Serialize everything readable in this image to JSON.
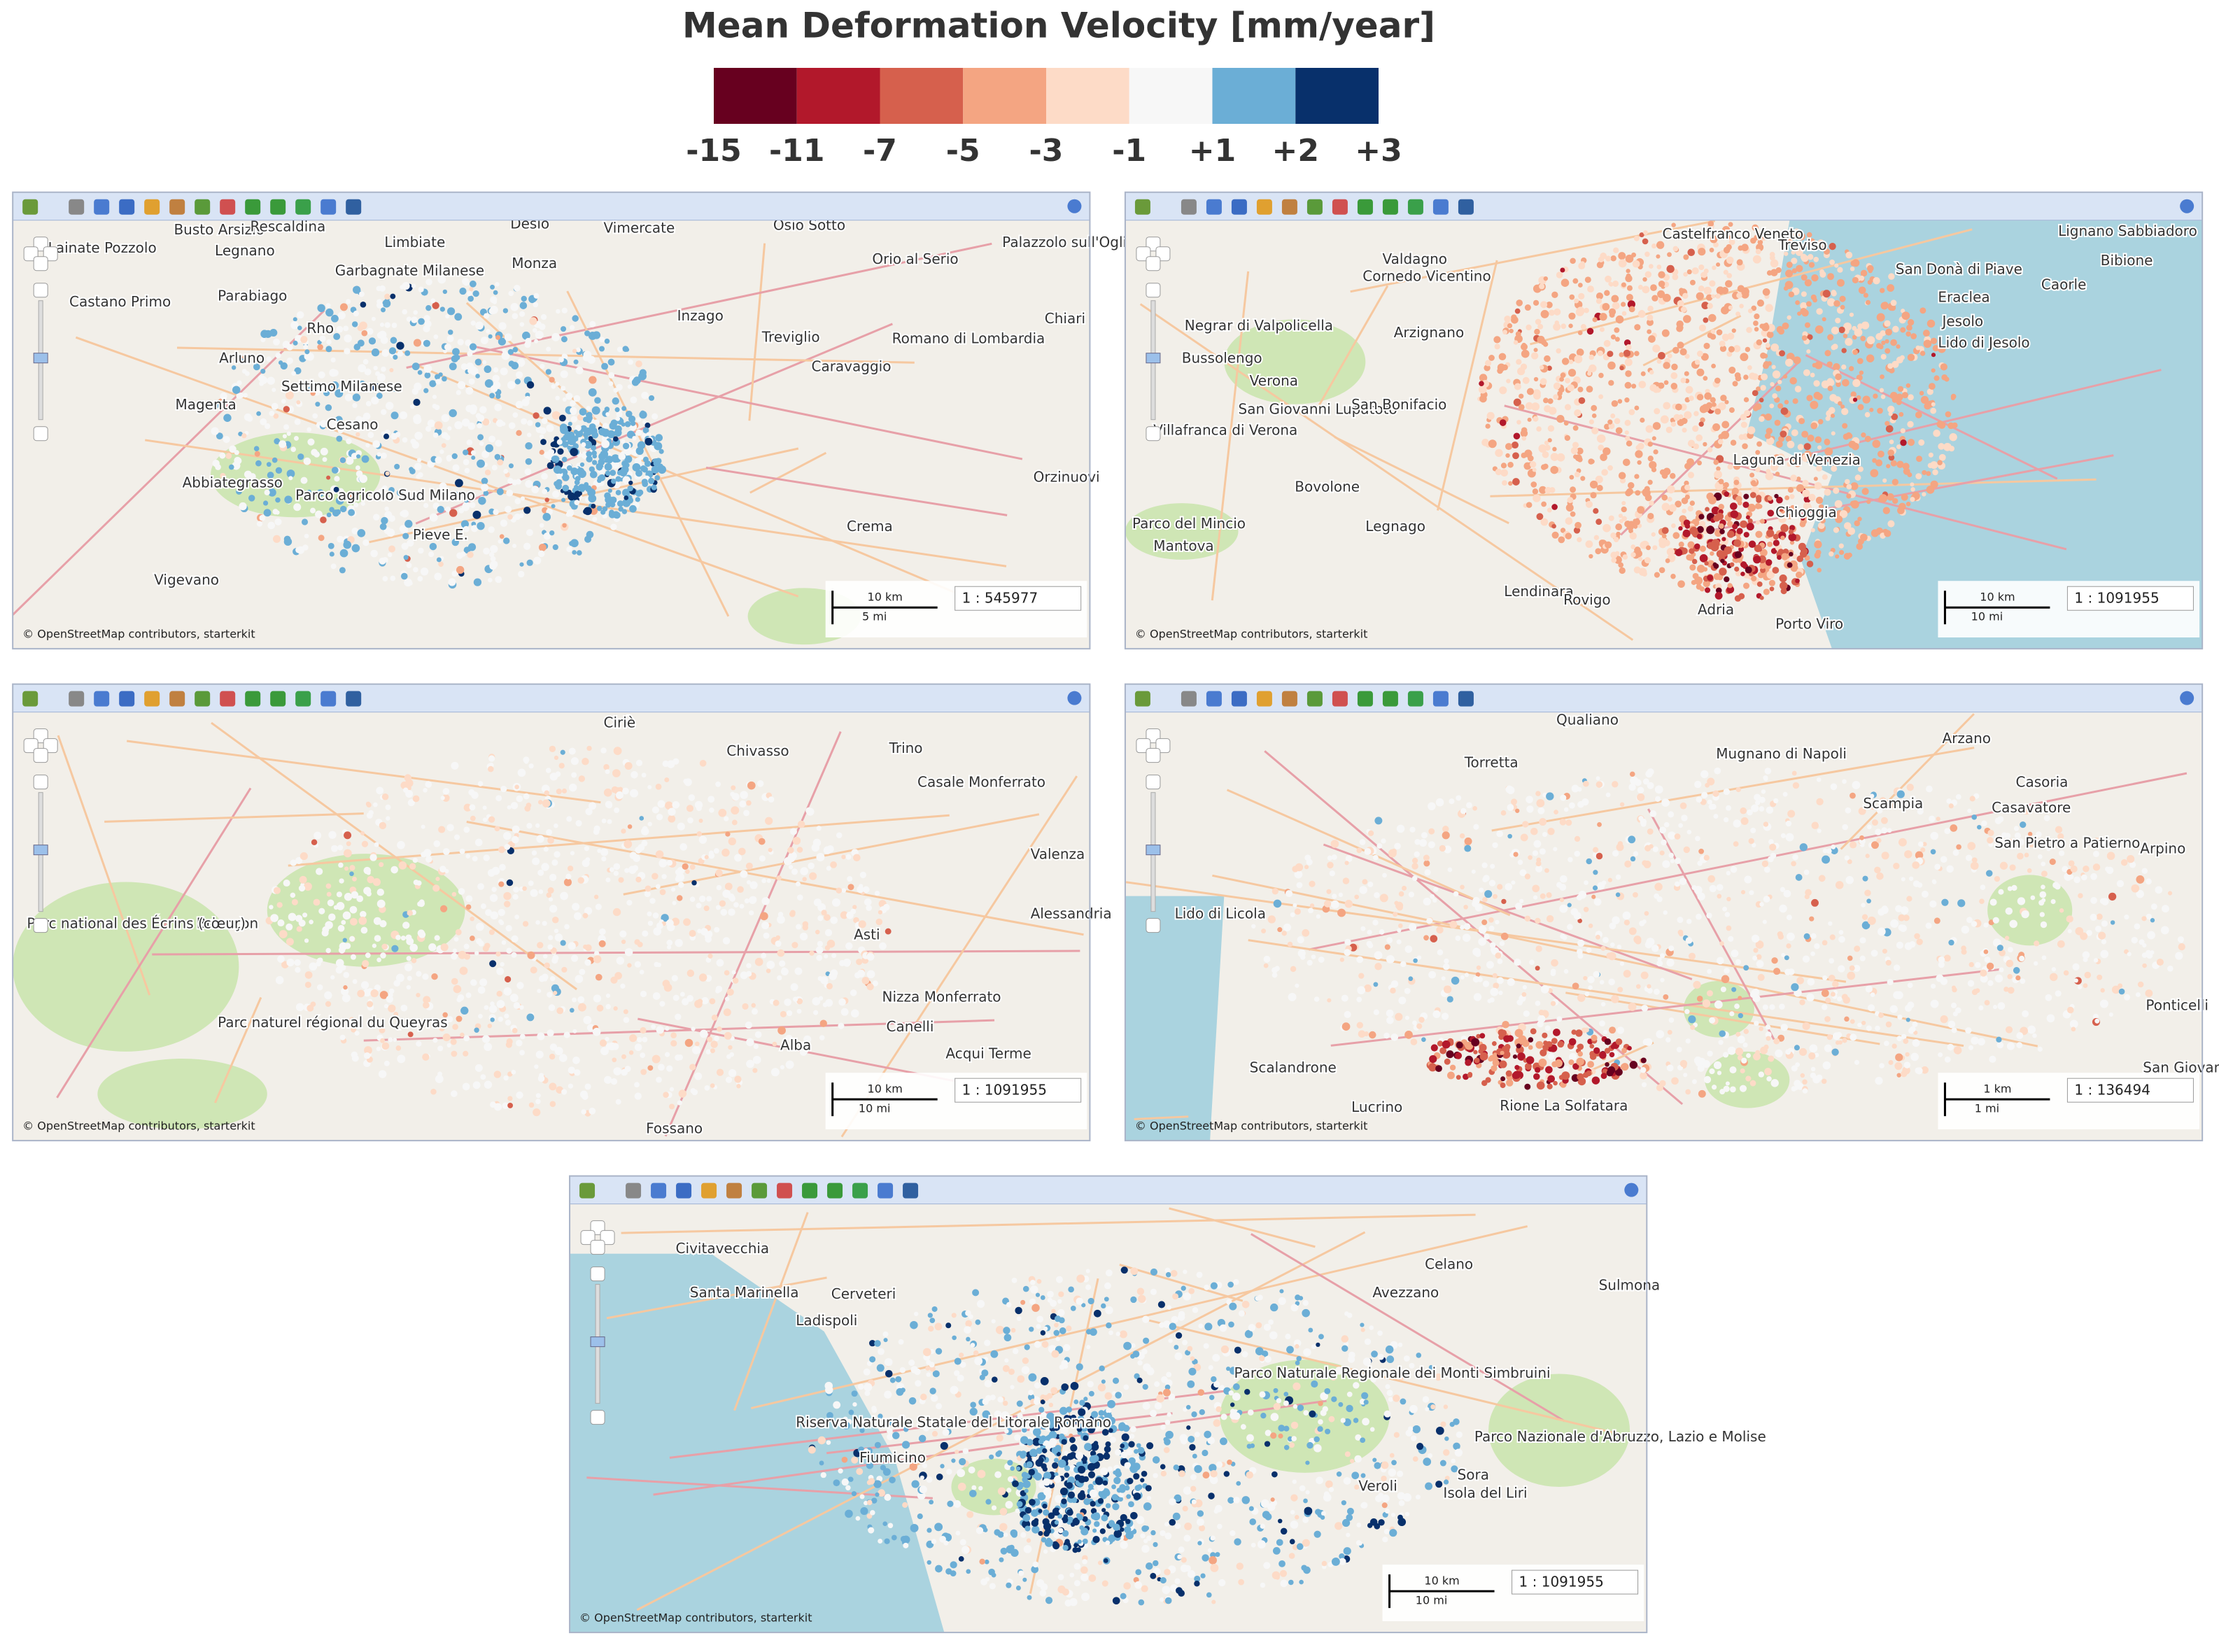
{
  "title": "Mean Deformation Velocity [mm/year]",
  "legend": {
    "colors": [
      "#67001f",
      "#b2182b",
      "#d6604d",
      "#f4a582",
      "#fddbc7",
      "#f7f7f7",
      "#6baed6",
      "#08306b"
    ],
    "labels": [
      "-15",
      "-11",
      "-7",
      "-5",
      "-3",
      "-1",
      "+1",
      "+2",
      "+3"
    ]
  },
  "maps": [
    {
      "places": [
        "Busto Arsizio",
        "Rescaldina",
        "Desio",
        "Vimercate",
        "Osio Sotto",
        "Palazzolo sull'Oglio",
        "Orio al Serio",
        "Legnano",
        "Limbiate",
        "Monza",
        "Lainate Pozzolo",
        "Garbagnate Milanese",
        "Parabiago",
        "Castano Primo",
        "Inzago",
        "Chiari",
        "Treviglio",
        "Rho",
        "Romano di Lombardia",
        "Arluno",
        "Caravaggio",
        "Settimo Milanese",
        "Magenta",
        "Cesano",
        "Abbiategrasso",
        "Parco agricolo Sud Milano",
        "Orzinuovi",
        "Crema",
        "Pieve E.",
        "Vigevano"
      ],
      "scale_km": "10 km",
      "scale_mi": "5 mi",
      "scale": "1 : 545977",
      "attribution": "© OpenStreetMap contributors, starterkit"
    },
    {
      "places": [
        "Castelfranco Veneto",
        "Treviso",
        "Lignano Sabbiadoro",
        "Bibione",
        "Valdagno",
        "Cornedo Vicentino",
        "San Donà di Piave",
        "Eraclea",
        "Caorle",
        "Negrar di Valpolicella",
        "Arzignano",
        "Jesolo",
        "Lido di Jesolo",
        "Bussolengo",
        "Verona",
        "San Giovanni Lupatoto",
        "San Bonifacio",
        "Villafranca di Verona",
        "Laguna di Venezia",
        "Bovolone",
        "Legnago",
        "Chioggia",
        "Parco del Mincio",
        "Mantova",
        "Lendinara",
        "Rovigo",
        "Adria",
        "Porto Viro"
      ],
      "scale_km": "10 km",
      "scale_mi": "10 mi",
      "scale": "1 : 1091955",
      "attribution": "© OpenStreetMap contributors, starterkit"
    },
    {
      "places": [
        "Ciriè",
        "Chivasso",
        "Trino",
        "Casale Monferrato",
        "Valenza",
        "Briançon",
        "Parc national des Écrins (cœur)",
        "Asti",
        "Alessandria",
        "Nizza Monferrato",
        "Parc naturel régional du Queyras",
        "Canelli",
        "Acqui Terme",
        "Alba",
        "Fossano"
      ],
      "scale_km": "10 km",
      "scale_mi": "10 mi",
      "scale": "1 : 1091955",
      "attribution": "© OpenStreetMap contributors, starterkit"
    },
    {
      "places": [
        "Qualiano",
        "Mugnano di Napoli",
        "Arzano",
        "Casoria",
        "Torretta",
        "Scampia",
        "Casavatore",
        "San Pietro a Patierno",
        "Arpino",
        "Lido di Licola",
        "Ponticelli",
        "San Giovanni",
        "Scalandrone",
        "Lucrino",
        "Rione La Solfatara"
      ],
      "scale_km": "1 km",
      "scale_mi": "1 mi",
      "scale": "1 : 136494",
      "attribution": "© OpenStreetMap contributors, starterkit"
    },
    {
      "places": [
        "Civitavecchia",
        "Santa Marinella",
        "Cerveteri",
        "Ladispoli",
        "Celano",
        "Avezzano",
        "Sulmona",
        "Parco Naturale Regionale dei Monti Simbruini",
        "Riserva Naturale Statale del Litorale Romano",
        "Fiumicino",
        "Parco Nazionale d'Abruzzo, Lazio e Molise",
        "Sora",
        "Veroli",
        "Isola del Liri"
      ],
      "scale_km": "10 km",
      "scale_mi": "10 mi",
      "scale": "1 : 1091955",
      "attribution": "© OpenStreetMap contributors, starterkit"
    }
  ]
}
